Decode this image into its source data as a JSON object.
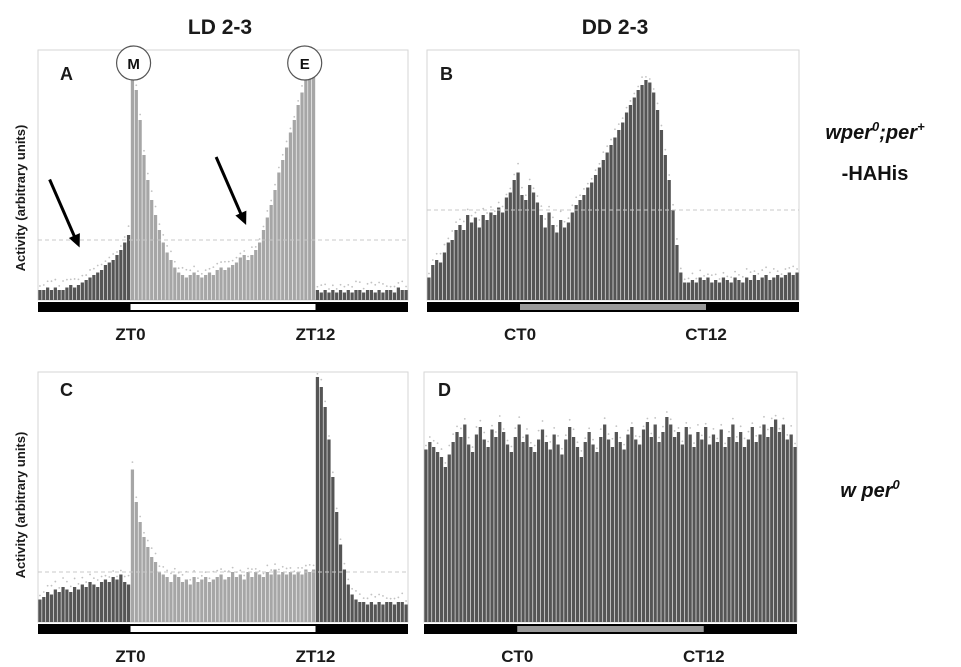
{
  "column_headers": [
    "LD 2-3",
    "DD 2-3"
  ],
  "row_labels": [
    {
      "main": "wper",
      "sup": "0",
      "mid": ";per",
      "sup2": "+",
      "line2": "-HAHis"
    },
    {
      "main": "w per",
      "sup": "0"
    }
  ],
  "y_axis_label": "Activity (arbitrary units)",
  "peak_markers": [
    "M",
    "E"
  ],
  "colors": {
    "bar_dark": "#555555",
    "bar_light": "#a6a6a6",
    "dots": "#c2c2c2",
    "dashed": "#c8c8c8",
    "bar_black": "#000000",
    "bar_white": "#ffffff",
    "bar_gray": "#999999",
    "arrow": "#000000"
  },
  "chart_data": [
    {
      "type": "bar",
      "panel": "A",
      "condition": "LD",
      "ticks": [
        "ZT0",
        "ZT12"
      ],
      "x_range": [
        -6,
        18
      ],
      "ymax": 10,
      "bin_hours": 0.25,
      "lights_on": [
        0,
        12
      ],
      "dashed_level": 2.4,
      "arrows_at": [
        -3.3,
        7.5
      ],
      "values": [
        0.4,
        0.4,
        0.5,
        0.4,
        0.5,
        0.4,
        0.4,
        0.5,
        0.6,
        0.5,
        0.6,
        0.7,
        0.8,
        0.9,
        1.0,
        1.1,
        1.2,
        1.4,
        1.5,
        1.6,
        1.8,
        2.0,
        2.3,
        2.6,
        9.6,
        8.4,
        7.2,
        5.8,
        4.8,
        4.0,
        3.4,
        2.8,
        2.3,
        1.9,
        1.6,
        1.3,
        1.1,
        1.0,
        0.9,
        1.0,
        1.1,
        1.0,
        0.9,
        1.0,
        1.1,
        1.0,
        1.2,
        1.3,
        1.2,
        1.3,
        1.4,
        1.5,
        1.7,
        1.8,
        1.6,
        1.8,
        2.0,
        2.3,
        2.8,
        3.3,
        3.8,
        4.4,
        5.1,
        5.6,
        6.1,
        6.7,
        7.2,
        7.8,
        8.3,
        8.9,
        9.3,
        9.7,
        0.4,
        0.3,
        0.4,
        0.3,
        0.4,
        0.3,
        0.4,
        0.3,
        0.4,
        0.3,
        0.4,
        0.4,
        0.3,
        0.4,
        0.4,
        0.3,
        0.4,
        0.3,
        0.4,
        0.4,
        0.3,
        0.5,
        0.4,
        0.4
      ]
    },
    {
      "type": "bar",
      "panel": "B",
      "condition": "DD",
      "ticks": [
        "CT0",
        "CT12"
      ],
      "x_range": [
        -6,
        18
      ],
      "ymax": 10,
      "bin_hours": 0.25,
      "lights_on": [
        0,
        12
      ],
      "dashed_level": 3.6,
      "values": [
        0.9,
        1.4,
        1.6,
        1.5,
        1.9,
        2.3,
        2.4,
        2.8,
        3.0,
        2.8,
        3.4,
        3.1,
        3.3,
        2.9,
        3.4,
        3.2,
        3.5,
        3.4,
        3.7,
        3.5,
        4.1,
        4.3,
        4.8,
        5.1,
        4.2,
        4.0,
        4.6,
        4.3,
        3.9,
        3.4,
        2.9,
        3.5,
        3.0,
        2.7,
        3.2,
        2.9,
        3.1,
        3.5,
        3.8,
        4.0,
        4.2,
        4.5,
        4.7,
        5.0,
        5.3,
        5.6,
        5.9,
        6.2,
        6.5,
        6.8,
        7.1,
        7.5,
        7.8,
        8.1,
        8.4,
        8.6,
        8.8,
        8.7,
        8.3,
        7.6,
        6.8,
        5.8,
        4.8,
        3.6,
        2.2,
        1.1,
        0.7,
        0.7,
        0.8,
        0.7,
        0.9,
        0.8,
        0.9,
        0.7,
        0.8,
        0.7,
        0.9,
        0.8,
        0.7,
        0.9,
        0.8,
        0.7,
        0.9,
        0.8,
        1.0,
        0.8,
        0.9,
        1.0,
        0.8,
        0.9,
        1.0,
        0.9,
        1.0,
        1.1,
        1.0,
        1.1
      ]
    },
    {
      "type": "bar",
      "panel": "C",
      "condition": "LD",
      "ticks": [
        "ZT0",
        "ZT12"
      ],
      "x_range": [
        -6,
        18
      ],
      "ymax": 10,
      "bin_hours": 0.25,
      "lights_on": [
        0,
        12
      ],
      "dashed_level": 2.0,
      "values": [
        0.9,
        1.0,
        1.2,
        1.1,
        1.3,
        1.2,
        1.4,
        1.3,
        1.2,
        1.4,
        1.3,
        1.5,
        1.4,
        1.6,
        1.5,
        1.4,
        1.6,
        1.7,
        1.6,
        1.8,
        1.7,
        1.9,
        1.6,
        1.5,
        6.1,
        4.8,
        4.0,
        3.4,
        3.0,
        2.6,
        2.4,
        2.0,
        1.9,
        1.8,
        1.6,
        1.9,
        1.8,
        1.6,
        1.7,
        1.5,
        1.8,
        1.6,
        1.7,
        1.8,
        1.6,
        1.7,
        1.8,
        1.9,
        1.7,
        1.8,
        2.0,
        1.8,
        1.9,
        1.7,
        2.0,
        1.8,
        2.0,
        1.9,
        1.8,
        2.0,
        1.9,
        2.1,
        1.9,
        2.0,
        1.9,
        2.0,
        1.9,
        2.0,
        1.9,
        2.1,
        2.0,
        2.1,
        9.8,
        9.4,
        8.6,
        7.3,
        5.8,
        4.4,
        3.1,
        2.1,
        1.5,
        1.1,
        0.9,
        0.8,
        0.8,
        0.7,
        0.8,
        0.7,
        0.8,
        0.7,
        0.8,
        0.8,
        0.7,
        0.8,
        0.8,
        0.7
      ]
    },
    {
      "type": "bar",
      "panel": "D",
      "condition": "DD",
      "ticks": [
        "CT0",
        "CT12"
      ],
      "x_range": [
        -6,
        18
      ],
      "ymax": 10,
      "bin_hours": 0.25,
      "lights_on": [
        0,
        12
      ],
      "values": [
        6.9,
        7.2,
        7.0,
        6.8,
        6.6,
        6.2,
        6.7,
        7.2,
        7.6,
        7.4,
        7.9,
        7.1,
        6.8,
        7.5,
        7.8,
        7.3,
        7.0,
        7.7,
        7.4,
        8.0,
        7.6,
        7.1,
        6.8,
        7.4,
        7.9,
        7.2,
        7.5,
        7.0,
        6.8,
        7.3,
        7.7,
        7.2,
        6.9,
        7.5,
        7.1,
        6.7,
        7.3,
        7.8,
        7.4,
        7.0,
        6.6,
        7.2,
        7.6,
        7.1,
        6.8,
        7.4,
        7.9,
        7.3,
        7.0,
        7.6,
        7.2,
        6.9,
        7.5,
        7.8,
        7.3,
        7.1,
        7.7,
        8.0,
        7.4,
        7.9,
        7.2,
        7.6,
        8.2,
        7.9,
        7.4,
        7.6,
        7.1,
        7.8,
        7.5,
        7.0,
        7.6,
        7.3,
        7.8,
        7.1,
        7.5,
        7.2,
        7.7,
        7.0,
        7.4,
        7.9,
        7.2,
        7.6,
        7.0,
        7.3,
        7.8,
        7.2,
        7.5,
        7.9,
        7.4,
        7.8,
        8.1,
        7.6,
        7.9,
        7.3,
        7.5,
        7.0
      ]
    }
  ]
}
